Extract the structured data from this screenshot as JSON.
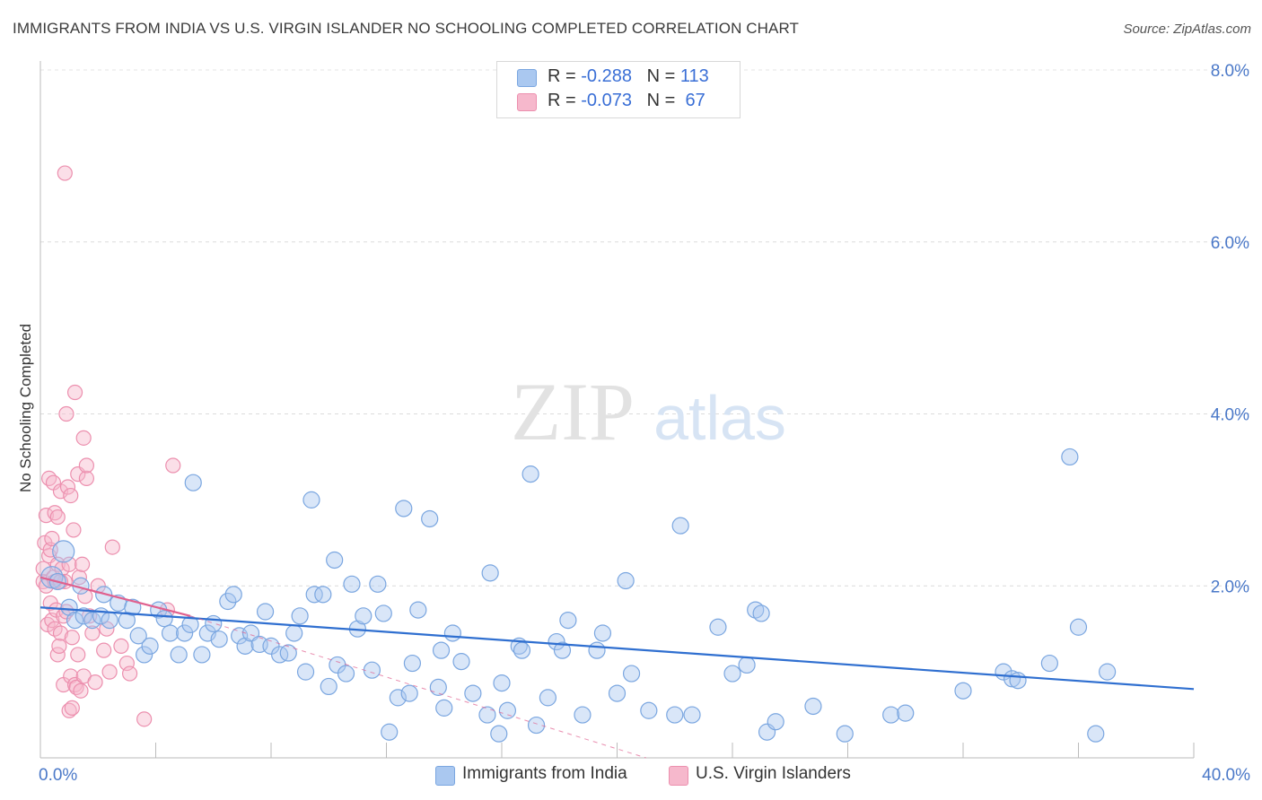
{
  "header": {
    "title": "IMMIGRANTS FROM INDIA VS U.S. VIRGIN ISLANDER NO SCHOOLING COMPLETED CORRELATION CHART",
    "source": "Source: ZipAtlas.com"
  },
  "watermark": {
    "zip": "ZIP",
    "atlas": "atlas"
  },
  "legend": {
    "rows": [
      {
        "r_label": "R = ",
        "r_value": "-0.288",
        "n_label": "N = ",
        "n_value": "113"
      },
      {
        "r_label": "R = ",
        "r_value": "-0.073",
        "n_label": "N = ",
        "n_value": " 67"
      }
    ]
  },
  "colors": {
    "blue_fill": "#aac8f0",
    "blue_stroke": "#7aa6e0",
    "blue_line": "#2f6fd0",
    "pink_fill": "#f6b8cc",
    "pink_stroke": "#ec8fae",
    "pink_line": "#e0608e",
    "axis_text": "#4a78c8"
  },
  "chart_data": {
    "type": "scatter",
    "title": "IMMIGRANTS FROM INDIA VS U.S. VIRGIN ISLANDER NO SCHOOLING COMPLETED CORRELATION CHART",
    "xlabel": "",
    "ylabel": "No Schooling Completed",
    "xlim": [
      0,
      40
    ],
    "ylim": [
      0,
      8
    ],
    "x_tick_labels": [
      "0.0%",
      "40.0%"
    ],
    "y_tick_labels": [
      "2.0%",
      "4.0%",
      "6.0%",
      "8.0%"
    ],
    "y_ticks": [
      2,
      4,
      6,
      8
    ],
    "grid": true,
    "series": [
      {
        "name": "Immigrants from India",
        "color": "blue",
        "trend": {
          "x0": 0,
          "y0": 1.75,
          "x1": 40,
          "y1": 0.8
        },
        "points": [
          [
            0.4,
            2.1
          ],
          [
            0.6,
            2.05
          ],
          [
            0.8,
            2.4
          ],
          [
            1.0,
            1.75
          ],
          [
            1.2,
            1.6
          ],
          [
            1.4,
            2.0
          ],
          [
            1.5,
            1.65
          ],
          [
            1.8,
            1.6
          ],
          [
            2.1,
            1.65
          ],
          [
            2.2,
            1.9
          ],
          [
            2.4,
            1.6
          ],
          [
            2.7,
            1.8
          ],
          [
            3.0,
            1.6
          ],
          [
            3.2,
            1.75
          ],
          [
            3.4,
            1.42
          ],
          [
            3.6,
            1.2
          ],
          [
            3.8,
            1.3
          ],
          [
            4.1,
            1.72
          ],
          [
            4.3,
            1.62
          ],
          [
            4.5,
            1.45
          ],
          [
            4.8,
            1.2
          ],
          [
            5.0,
            1.45
          ],
          [
            5.2,
            1.55
          ],
          [
            5.3,
            3.2
          ],
          [
            5.6,
            1.2
          ],
          [
            5.8,
            1.45
          ],
          [
            6.0,
            1.56
          ],
          [
            6.2,
            1.38
          ],
          [
            6.5,
            1.82
          ],
          [
            6.7,
            1.9
          ],
          [
            6.9,
            1.42
          ],
          [
            7.1,
            1.3
          ],
          [
            7.3,
            1.45
          ],
          [
            7.6,
            1.32
          ],
          [
            7.8,
            1.7
          ],
          [
            8.0,
            1.3
          ],
          [
            8.3,
            1.2
          ],
          [
            8.6,
            1.22
          ],
          [
            8.8,
            1.45
          ],
          [
            9.0,
            1.65
          ],
          [
            9.2,
            1.0
          ],
          [
            9.4,
            3.0
          ],
          [
            9.5,
            1.9
          ],
          [
            9.8,
            1.9
          ],
          [
            10.0,
            0.83
          ],
          [
            10.2,
            2.3
          ],
          [
            10.3,
            1.08
          ],
          [
            10.6,
            0.98
          ],
          [
            10.8,
            2.02
          ],
          [
            11.0,
            1.5
          ],
          [
            11.2,
            1.65
          ],
          [
            11.5,
            1.02
          ],
          [
            11.7,
            2.02
          ],
          [
            11.9,
            1.68
          ],
          [
            12.1,
            0.3
          ],
          [
            12.4,
            0.7
          ],
          [
            12.6,
            2.9
          ],
          [
            12.8,
            0.75
          ],
          [
            12.9,
            1.1
          ],
          [
            13.1,
            1.72
          ],
          [
            13.5,
            2.78
          ],
          [
            13.8,
            0.82
          ],
          [
            13.9,
            1.25
          ],
          [
            14.0,
            0.58
          ],
          [
            14.3,
            1.45
          ],
          [
            14.6,
            1.12
          ],
          [
            15.0,
            0.75
          ],
          [
            15.5,
            0.5
          ],
          [
            15.6,
            2.15
          ],
          [
            15.9,
            0.28
          ],
          [
            16.0,
            0.87
          ],
          [
            16.2,
            0.55
          ],
          [
            16.6,
            1.3
          ],
          [
            16.7,
            1.25
          ],
          [
            17.0,
            3.3
          ],
          [
            17.2,
            0.38
          ],
          [
            17.6,
            0.7
          ],
          [
            17.9,
            1.35
          ],
          [
            18.1,
            1.25
          ],
          [
            18.3,
            1.6
          ],
          [
            18.8,
            0.5
          ],
          [
            19.3,
            1.25
          ],
          [
            19.5,
            1.45
          ],
          [
            20.0,
            0.75
          ],
          [
            20.3,
            2.06
          ],
          [
            20.5,
            0.98
          ],
          [
            21.1,
            0.55
          ],
          [
            22.0,
            0.5
          ],
          [
            22.2,
            2.7
          ],
          [
            22.6,
            0.5
          ],
          [
            23.5,
            1.52
          ],
          [
            24.0,
            0.98
          ],
          [
            24.5,
            1.08
          ],
          [
            24.8,
            1.72
          ],
          [
            25.0,
            1.68
          ],
          [
            25.2,
            0.3
          ],
          [
            25.5,
            0.42
          ],
          [
            26.8,
            0.6
          ],
          [
            27.9,
            0.28
          ],
          [
            29.5,
            0.5
          ],
          [
            30.0,
            0.52
          ],
          [
            32.0,
            0.78
          ],
          [
            33.4,
            1.0
          ],
          [
            33.7,
            0.92
          ],
          [
            33.9,
            0.9
          ],
          [
            35.0,
            1.1
          ],
          [
            35.7,
            3.5
          ],
          [
            36.0,
            1.52
          ],
          [
            36.6,
            0.28
          ],
          [
            37.0,
            1.0
          ]
        ]
      },
      {
        "name": "U.S. Virgin Islanders",
        "color": "pink",
        "trend": {
          "x0": 0,
          "y0": 2.1,
          "x1": 5.2,
          "y1": 1.65,
          "dash_to_x": 21,
          "dash_to_y": 0
        },
        "points": [
          [
            0.1,
            2.05
          ],
          [
            0.1,
            2.2
          ],
          [
            0.15,
            2.5
          ],
          [
            0.2,
            2.0
          ],
          [
            0.2,
            2.82
          ],
          [
            0.25,
            1.55
          ],
          [
            0.3,
            2.35
          ],
          [
            0.3,
            3.25
          ],
          [
            0.35,
            2.42
          ],
          [
            0.35,
            1.8
          ],
          [
            0.4,
            2.55
          ],
          [
            0.4,
            1.6
          ],
          [
            0.45,
            3.2
          ],
          [
            0.45,
            2.1
          ],
          [
            0.5,
            2.85
          ],
          [
            0.5,
            1.5
          ],
          [
            0.5,
            2.05
          ],
          [
            0.55,
            1.72
          ],
          [
            0.6,
            2.8
          ],
          [
            0.6,
            1.2
          ],
          [
            0.6,
            2.25
          ],
          [
            0.65,
            1.3
          ],
          [
            0.7,
            1.45
          ],
          [
            0.7,
            3.1
          ],
          [
            0.75,
            2.2
          ],
          [
            0.8,
            0.85
          ],
          [
            0.8,
            1.65
          ],
          [
            0.85,
            6.8
          ],
          [
            0.85,
            2.05
          ],
          [
            0.9,
            4.0
          ],
          [
            0.9,
            1.7
          ],
          [
            0.95,
            3.15
          ],
          [
            1.0,
            0.55
          ],
          [
            1.0,
            2.25
          ],
          [
            1.05,
            0.95
          ],
          [
            1.05,
            3.05
          ],
          [
            1.1,
            0.58
          ],
          [
            1.1,
            1.4
          ],
          [
            1.15,
            2.65
          ],
          [
            1.2,
            4.25
          ],
          [
            1.2,
            0.85
          ],
          [
            1.25,
            0.82
          ],
          [
            1.3,
            3.3
          ],
          [
            1.3,
            1.2
          ],
          [
            1.35,
            2.1
          ],
          [
            1.4,
            0.78
          ],
          [
            1.45,
            2.25
          ],
          [
            1.5,
            3.72
          ],
          [
            1.5,
            0.95
          ],
          [
            1.55,
            1.88
          ],
          [
            1.6,
            3.25
          ],
          [
            1.6,
            3.4
          ],
          [
            1.7,
            1.65
          ],
          [
            1.8,
            1.45
          ],
          [
            1.9,
            0.88
          ],
          [
            2.0,
            2.0
          ],
          [
            2.2,
            1.25
          ],
          [
            2.3,
            1.5
          ],
          [
            2.4,
            1.0
          ],
          [
            2.5,
            2.45
          ],
          [
            2.8,
            1.3
          ],
          [
            3.0,
            1.1
          ],
          [
            3.1,
            0.98
          ],
          [
            3.6,
            0.45
          ],
          [
            4.4,
            1.72
          ],
          [
            4.6,
            3.4
          ],
          [
            0.7,
            2.05
          ]
        ]
      }
    ]
  },
  "bottom_legend": {
    "items": [
      {
        "label": "Immigrants from India"
      },
      {
        "label": "U.S. Virgin Islanders"
      }
    ]
  }
}
